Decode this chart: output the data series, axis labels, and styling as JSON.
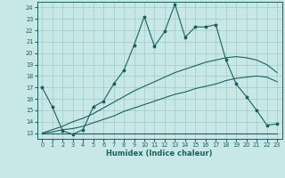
{
  "xlabel": "Humidex (Indice chaleur)",
  "bg_color": "#c8e8e8",
  "grid_color": "#a0c8c8",
  "line_color": "#1a6060",
  "xlim": [
    -0.5,
    23.5
  ],
  "ylim": [
    12.5,
    24.5
  ],
  "xticks": [
    0,
    1,
    2,
    3,
    4,
    5,
    6,
    7,
    8,
    9,
    10,
    11,
    12,
    13,
    14,
    15,
    16,
    17,
    18,
    19,
    20,
    21,
    22,
    23
  ],
  "yticks": [
    13,
    14,
    15,
    16,
    17,
    18,
    19,
    20,
    21,
    22,
    23,
    24
  ],
  "line1_x": [
    0,
    1,
    2,
    3,
    4,
    5,
    6,
    7,
    8,
    9,
    10,
    11,
    12,
    13,
    14,
    15,
    16,
    17,
    18,
    19,
    20,
    21,
    22,
    23
  ],
  "line1_y": [
    17.0,
    15.3,
    13.2,
    12.9,
    13.3,
    15.3,
    15.8,
    17.3,
    18.5,
    20.7,
    23.2,
    20.6,
    21.9,
    24.3,
    21.4,
    22.3,
    22.3,
    22.5,
    19.4,
    17.3,
    16.2,
    15.0,
    13.7,
    13.8
  ],
  "line2_x": [
    0,
    1,
    2,
    3,
    4,
    5,
    6,
    7,
    8,
    9,
    10,
    11,
    12,
    13,
    14,
    15,
    16,
    17,
    18,
    19,
    20,
    21,
    22,
    23
  ],
  "line2_y": [
    13.0,
    13.0,
    13.0,
    13.0,
    13.0,
    13.0,
    13.0,
    13.0,
    13.0,
    13.0,
    13.0,
    13.0,
    13.0,
    13.0,
    13.0,
    13.0,
    13.0,
    13.0,
    13.0,
    13.0,
    13.0,
    13.0,
    13.0,
    13.0
  ],
  "line3_x": [
    0,
    1,
    2,
    3,
    4,
    5,
    6,
    7,
    8,
    9,
    10,
    11,
    12,
    13,
    14,
    15,
    16,
    17,
    18,
    19,
    20,
    21,
    22,
    23
  ],
  "line3_y": [
    13.0,
    13.1,
    13.3,
    13.4,
    13.6,
    13.9,
    14.2,
    14.5,
    14.9,
    15.2,
    15.5,
    15.8,
    16.1,
    16.4,
    16.6,
    16.9,
    17.1,
    17.3,
    17.6,
    17.8,
    17.9,
    18.0,
    17.9,
    17.5
  ],
  "line4_x": [
    0,
    1,
    2,
    3,
    4,
    5,
    6,
    7,
    8,
    9,
    10,
    11,
    12,
    13,
    14,
    15,
    16,
    17,
    18,
    19,
    20,
    21,
    22,
    23
  ],
  "line4_y": [
    13.0,
    13.3,
    13.6,
    14.0,
    14.3,
    14.7,
    15.2,
    15.7,
    16.2,
    16.7,
    17.1,
    17.5,
    17.9,
    18.3,
    18.6,
    18.9,
    19.2,
    19.4,
    19.6,
    19.7,
    19.6,
    19.4,
    19.0,
    18.3
  ]
}
